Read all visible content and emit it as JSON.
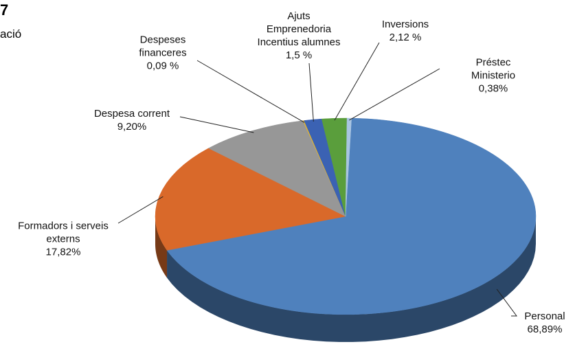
{
  "chart_data": {
    "type": "pie",
    "title": "7",
    "subtitle": "ació",
    "categories": [
      "Personal",
      "Formadors i serveis\nexterns",
      "Despesa corrent",
      "Despeses\nfinanceres",
      "Ajuts\nEmprenedoria\nIncentius alumnes",
      "Inversions",
      "Préstec Ministerio"
    ],
    "values": [
      68.89,
      17.82,
      9.2,
      0.09,
      1.5,
      2.12,
      0.38
    ],
    "value_labels": [
      "68,89%",
      "17,82%",
      "9,20%",
      "0,09 %",
      "1,5 %",
      "2,12 %",
      "0,38%"
    ],
    "colors": [
      "#4f81bd",
      "#d9692a",
      "#979797",
      "#e9b82a",
      "#3b62b3",
      "#5a9e3c",
      "#a9c5e2"
    ]
  }
}
